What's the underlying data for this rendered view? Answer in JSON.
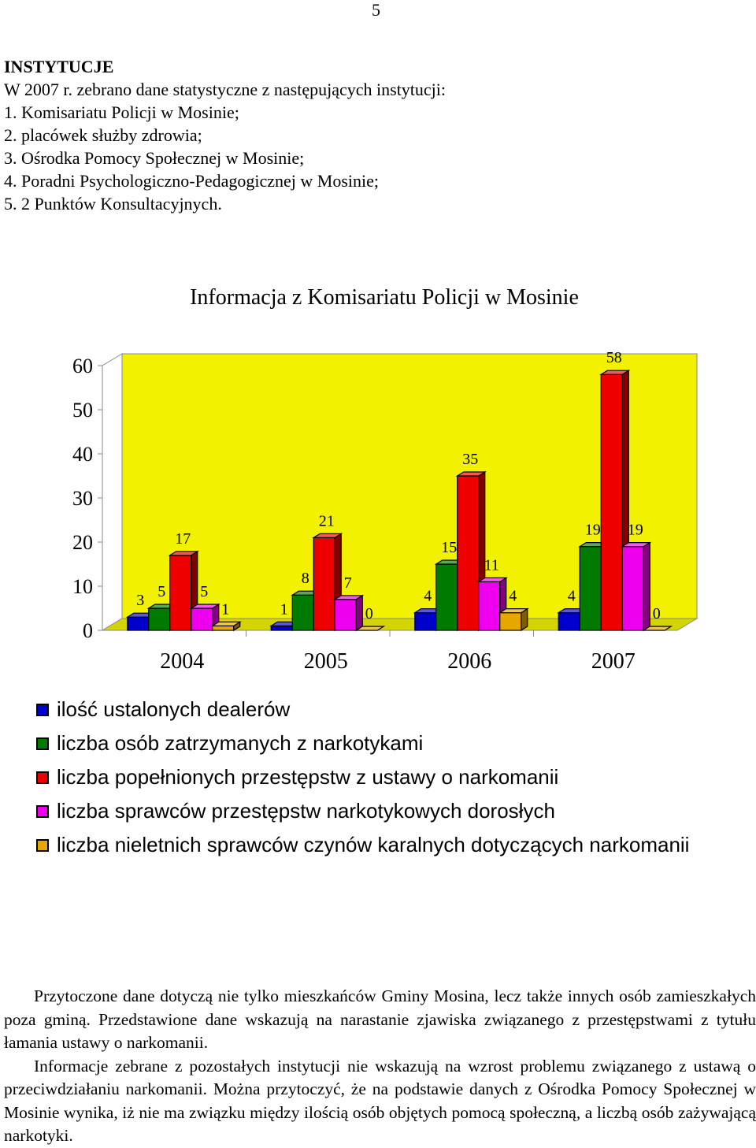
{
  "page_number": "5",
  "intro": {
    "heading": "INSTYTUCJE",
    "lead": "W 2007 r. zebrano dane statystyczne z następujących instytucji:",
    "items": [
      "1. Komisariatu Policji w Mosinie;",
      "2. placówek służby zdrowia;",
      "3. Ośrodka Pomocy Społecznej w Mosinie;",
      "4. Poradni Psychologiczno-Pedagogicznej w Mosinie;",
      "5. 2 Punktów Konsultacyjnych."
    ]
  },
  "chart_data": {
    "type": "bar",
    "title": "Informacja z Komisariatu Policji w Mosinie",
    "categories": [
      "2004",
      "2005",
      "2006",
      "2007"
    ],
    "ylim": [
      0,
      60
    ],
    "yticks": [
      "0",
      "10",
      "20",
      "30",
      "40",
      "50",
      "60"
    ],
    "grid": false,
    "legend_position": "bottom",
    "series": [
      {
        "name": "ilość ustalonych dealerów",
        "values": [
          3,
          1,
          4,
          4
        ],
        "color": "#0000cc"
      },
      {
        "name": "liczba osób zatrzymanych z narkotykami",
        "values": [
          5,
          8,
          15,
          19
        ],
        "color": "#007a00"
      },
      {
        "name": "liczba popełnionych przestępstw z ustawy o narkomanii",
        "values": [
          17,
          21,
          35,
          58
        ],
        "color": "#ee0000"
      },
      {
        "name": "liczba sprawców przestępstw narkotykowych dorosłych",
        "values": [
          5,
          7,
          11,
          19
        ],
        "color": "#ee00ee"
      },
      {
        "name": "liczba nieletnich sprawców czynów karalnych dotyczących narkomanii",
        "values": [
          1,
          0,
          4,
          0
        ],
        "color": "#e6a800"
      }
    ],
    "colors": {
      "plot_wall": "#f2f200",
      "plot_floor": "#d4d400"
    }
  },
  "closing": {
    "paragraphs": [
      "Przytoczone dane dotyczą nie tylko mieszkańców Gminy Mosina, lecz także innych osób zamieszkałych poza gminą. Przedstawione dane wskazują na narastanie zjawiska związanego z przestępstwami z tytułu łamania ustawy o narkomanii.",
      "Informacje zebrane z pozostałych instytucji nie wskazują na wzrost problemu związanego z ustawą o przeciwdziałaniu narkomanii. Można przytoczyć, że na podstawie danych z Ośrodka Pomocy Społecznej w Mosinie wynika, iż nie ma związku między ilością osób objętych pomocą społeczną, a liczbą osób zażywającą narkotyki."
    ]
  }
}
